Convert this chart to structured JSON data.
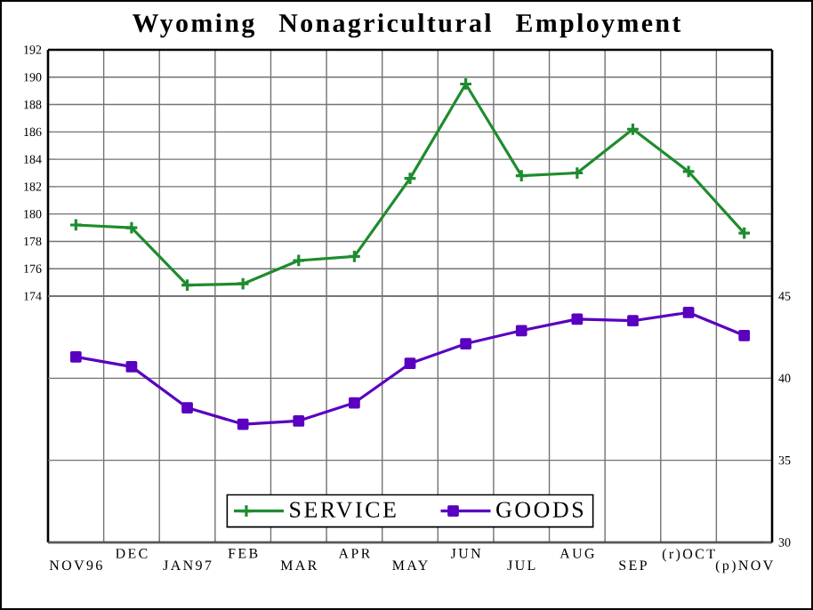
{
  "chart_data": {
    "type": "line",
    "title": "Wyoming Nonagricultural Employment",
    "categories": [
      "NOV96",
      "DEC",
      "JAN97",
      "FEB",
      "MAR",
      "APR",
      "MAY",
      "JUN",
      "JUL",
      "AUG",
      "SEP",
      "(r)OCT",
      "(p)NOV"
    ],
    "series": [
      {
        "name": "SERVICE",
        "color": "#1e8c2e",
        "marker": "cross",
        "values": [
          179.2,
          179.0,
          174.8,
          174.9,
          176.6,
          176.9,
          182.6,
          189.5,
          182.8,
          183.0,
          186.2,
          183.1,
          178.6
        ]
      },
      {
        "name": "GOODS",
        "color": "#5a00c0",
        "marker": "square",
        "axis": "y2",
        "values": [
          41.3,
          40.7,
          38.2,
          37.2,
          37.4,
          38.5,
          40.9,
          42.1,
          42.9,
          43.6,
          43.5,
          44.0,
          42.6
        ]
      }
    ],
    "ylim": [
      156,
      192
    ],
    "yticks": [
      174,
      176,
      178,
      180,
      182,
      184,
      186,
      188,
      190,
      192
    ],
    "y2lim": [
      30,
      60
    ],
    "y2ticks": [
      30,
      35,
      40,
      45
    ],
    "grid": true,
    "legend": "bottom",
    "line_style": "solid"
  }
}
